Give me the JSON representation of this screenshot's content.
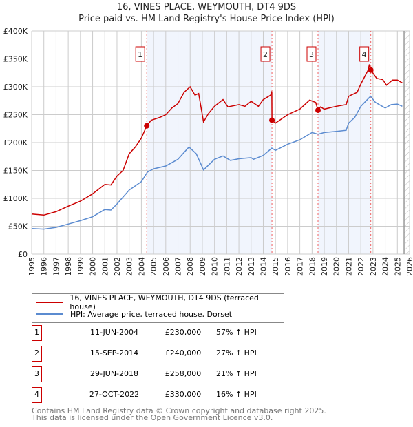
{
  "title": "16, VINES PLACE, WEYMOUTH, DT4 9DS",
  "subtitle": "Price paid vs. HM Land Registry's House Price Index (HPI)",
  "chart_data": {
    "type": "line",
    "title": "16, VINES PLACE, WEYMOUTH, DT4 9DS",
    "xlim": [
      1995,
      2026
    ],
    "ylim": [
      0,
      400000
    ],
    "x_ticks": [
      "1995",
      "1996",
      "1997",
      "1998",
      "1999",
      "2000",
      "2001",
      "2002",
      "2003",
      "2004",
      "2005",
      "2006",
      "2007",
      "2008",
      "2009",
      "2010",
      "2011",
      "2012",
      "2013",
      "2014",
      "2015",
      "2016",
      "2017",
      "2018",
      "2019",
      "2020",
      "2021",
      "2022",
      "2023",
      "2024",
      "2025",
      "2026"
    ],
    "y_ticks": [
      {
        "v": 0,
        "label": "£0"
      },
      {
        "v": 50000,
        "label": "£50K"
      },
      {
        "v": 100000,
        "label": "£100K"
      },
      {
        "v": 150000,
        "label": "£150K"
      },
      {
        "v": 200000,
        "label": "£200K"
      },
      {
        "v": 250000,
        "label": "£250K"
      },
      {
        "v": 300000,
        "label": "£300K"
      },
      {
        "v": 350000,
        "label": "£350K"
      },
      {
        "v": 400000,
        "label": "£400K"
      }
    ],
    "grid": true,
    "data_end": 2025.55,
    "series": [
      {
        "name": "16, VINES PLACE, WEYMOUTH, DT4 9DS (terraced house)",
        "color": "#cc0000",
        "x": [
          1995,
          1996,
          1997,
          1998,
          1999,
          2000,
          2001,
          2001.5,
          2002,
          2002.5,
          2003,
          2003.5,
          2004,
          2004.44,
          2004.8,
          2005.5,
          2006,
          2006.5,
          2007,
          2007.5,
          2008,
          2008.4,
          2008.7,
          2009.1,
          2009.5,
          2010,
          2010.7,
          2011.1,
          2012,
          2012.5,
          2013,
          2013.6,
          2014,
          2014.6,
          2014.7,
          2014.71,
          2015,
          2016,
          2017,
          2017.8,
          2018.3,
          2018.49,
          2018.7,
          2019,
          2020,
          2020.8,
          2021,
          2021.7,
          2022,
          2022.6,
          2022.7,
          2022.82,
          2023.3,
          2023.8,
          2024.1,
          2024.6,
          2025,
          2025.4
        ],
        "y": [
          72000,
          70000,
          76000,
          86000,
          95000,
          108000,
          125000,
          124000,
          140000,
          150000,
          180000,
          192000,
          208000,
          230000,
          240000,
          245000,
          250000,
          262000,
          270000,
          290000,
          300000,
          285000,
          288000,
          237000,
          252000,
          265000,
          277000,
          264000,
          268000,
          265000,
          274000,
          265000,
          277000,
          285000,
          292000,
          240000,
          235000,
          250000,
          260000,
          276000,
          272000,
          258000,
          264000,
          260000,
          265000,
          268000,
          283000,
          290000,
          305000,
          330000,
          340000,
          330000,
          315000,
          313000,
          303000,
          312000,
          312000,
          307000
        ]
      },
      {
        "name": "HPI: Average price, terraced house, Dorset",
        "color": "#5b8bd0",
        "x": [
          1995,
          1996,
          1997,
          1998,
          1999,
          2000,
          2001,
          2001.5,
          2002,
          2003,
          2004,
          2004.5,
          2005,
          2006,
          2007,
          2007.9,
          2008.5,
          2009.1,
          2010,
          2010.7,
          2011.3,
          2012,
          2013,
          2013.2,
          2014,
          2014.7,
          2015,
          2016,
          2017,
          2018,
          2018.5,
          2019,
          2020,
          2020.8,
          2021,
          2021.5,
          2022,
          2022.8,
          2023.2,
          2024,
          2024.5,
          2025,
          2025.4
        ],
        "y": [
          46000,
          45000,
          48000,
          54000,
          60000,
          67000,
          80000,
          79000,
          90000,
          115000,
          130000,
          147000,
          153000,
          158000,
          170000,
          192000,
          180000,
          151000,
          170000,
          176000,
          168000,
          171000,
          173000,
          170000,
          177000,
          190000,
          186000,
          197000,
          205000,
          218000,
          215000,
          218000,
          220000,
          222000,
          235000,
          245000,
          265000,
          283000,
          272000,
          262000,
          268000,
          269000,
          265000
        ]
      }
    ],
    "sales": [
      {
        "n": "1",
        "x": 2004.44,
        "y": 230000,
        "date": "11-JUN-2004",
        "price": "£230,000",
        "hpi": "57% ↑ HPI"
      },
      {
        "n": "2",
        "x": 2014.71,
        "y": 240000,
        "date": "15-SEP-2014",
        "price": "£240,000",
        "hpi": "27% ↑ HPI"
      },
      {
        "n": "3",
        "x": 2018.49,
        "y": 258000,
        "date": "29-JUN-2018",
        "price": "£258,000",
        "hpi": "21% ↑ HPI"
      },
      {
        "n": "4",
        "x": 2022.82,
        "y": 330000,
        "date": "27-OCT-2022",
        "price": "£330,000",
        "hpi": "16% ↑ HPI"
      }
    ]
  },
  "legend": {
    "property": "16, VINES PLACE, WEYMOUTH, DT4 9DS (terraced house)",
    "hpi": "HPI: Average price, terraced house, Dorset"
  },
  "footer": {
    "line1": "Contains HM Land Registry data © Crown copyright and database right 2025.",
    "line2": "This data is licensed under the Open Government Licence v3.0."
  }
}
